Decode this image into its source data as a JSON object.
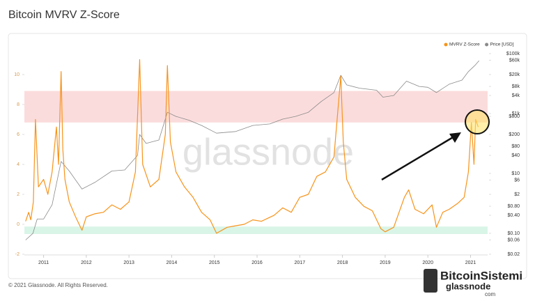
{
  "chart_data": {
    "type": "line",
    "title": "Bitcoin MVRV Z-Score",
    "watermark": "glassnode",
    "copyright": "© 2021 Glassnode. All Rights Reserved.",
    "logo": {
      "name": "BitcoinSistemi",
      "sub": "glassnode",
      "tag": "com"
    },
    "legend": "top-right",
    "xlim": [
      2010.55,
      2021.4
    ],
    "xticks": [
      2011,
      2012,
      2013,
      2014,
      2015,
      2016,
      2017,
      2018,
      2019,
      2020,
      2021
    ],
    "ylim": [
      -2,
      12
    ],
    "yticks": [
      -2,
      0,
      2,
      4,
      6,
      8,
      10
    ],
    "y2lim": [
      0.02,
      200000
    ],
    "y2log": true,
    "y2ticks": [
      {
        "value": 100000,
        "label": "$100k"
      },
      {
        "value": 60000,
        "label": "$60k"
      },
      {
        "value": 20000,
        "label": "$20k"
      },
      {
        "value": 8000,
        "label": "$8k"
      },
      {
        "value": 4000,
        "label": "$4k"
      },
      {
        "value": 1000,
        "label": "$1k"
      },
      {
        "value": 800,
        "label": "$800"
      },
      {
        "value": 200,
        "label": "$200"
      },
      {
        "value": 80,
        "label": "$80"
      },
      {
        "value": 40,
        "label": "$40"
      },
      {
        "value": 10,
        "label": "$10"
      },
      {
        "value": 6,
        "label": "$6"
      },
      {
        "value": 2,
        "label": "$2"
      },
      {
        "value": 0.8,
        "label": "$0.80"
      },
      {
        "value": 0.4,
        "label": "$0.40"
      },
      {
        "value": 0.1,
        "label": "$0.10"
      },
      {
        "value": 0.06,
        "label": "$0.06"
      },
      {
        "value": 0.02,
        "label": "$0.02"
      }
    ],
    "bands": [
      {
        "from": 6.8,
        "to": 8.9,
        "color": "#fbdcdc"
      },
      {
        "from": -0.65,
        "to": -0.15,
        "color": "#d9f5e8"
      }
    ],
    "series": [
      {
        "name": "MVRV Z-Score",
        "color": "#f7931a",
        "axis": "y",
        "x": [
          2010.58,
          2010.65,
          2010.7,
          2010.76,
          2010.81,
          2010.88,
          2011.0,
          2011.1,
          2011.2,
          2011.3,
          2011.35,
          2011.41,
          2011.45,
          2011.5,
          2011.6,
          2011.75,
          2011.9,
          2012.0,
          2012.2,
          2012.4,
          2012.6,
          2012.8,
          2013.0,
          2013.15,
          2013.25,
          2013.32,
          2013.5,
          2013.7,
          2013.85,
          2013.9,
          2013.97,
          2014.1,
          2014.3,
          2014.5,
          2014.7,
          2014.9,
          2015.05,
          2015.3,
          2015.5,
          2015.7,
          2015.9,
          2016.1,
          2016.4,
          2016.6,
          2016.8,
          2017.0,
          2017.2,
          2017.4,
          2017.6,
          2017.8,
          2017.96,
          2018.02,
          2018.1,
          2018.3,
          2018.5,
          2018.7,
          2018.9,
          2019.0,
          2019.2,
          2019.45,
          2019.55,
          2019.7,
          2019.9,
          2020.1,
          2020.2,
          2020.35,
          2020.5,
          2020.7,
          2020.85,
          2020.95,
          2021.02,
          2021.08,
          2021.12,
          2021.18
        ],
        "values": [
          0.2,
          0.8,
          0.3,
          1.5,
          7.0,
          2.5,
          3.0,
          2.0,
          3.5,
          6.5,
          4.0,
          10.2,
          5.0,
          3.0,
          1.5,
          0.5,
          -0.4,
          0.5,
          0.7,
          0.8,
          1.3,
          1.0,
          1.5,
          3.5,
          11.0,
          4.0,
          2.5,
          3.0,
          6.0,
          10.6,
          5.5,
          3.5,
          2.5,
          1.8,
          0.8,
          0.3,
          -0.6,
          -0.2,
          -0.1,
          0.0,
          0.3,
          0.2,
          0.6,
          1.1,
          0.8,
          1.8,
          2.0,
          3.2,
          3.5,
          4.5,
          9.9,
          5.5,
          3.0,
          1.8,
          1.2,
          0.9,
          -0.3,
          -0.5,
          -0.2,
          1.8,
          2.3,
          1.0,
          0.7,
          1.3,
          -0.2,
          0.8,
          1.0,
          1.4,
          1.8,
          3.5,
          6.8,
          4.0,
          7.0,
          6.5
        ]
      },
      {
        "name": "Price [USD]",
        "color": "#8a8a8a",
        "axis": "y2",
        "x": [
          2010.58,
          2010.75,
          2010.85,
          2011.0,
          2011.2,
          2011.41,
          2011.6,
          2011.9,
          2012.2,
          2012.6,
          2012.9,
          2013.2,
          2013.25,
          2013.4,
          2013.7,
          2013.9,
          2014.1,
          2014.4,
          2014.7,
          2015.05,
          2015.5,
          2015.9,
          2016.3,
          2016.6,
          2016.9,
          2017.2,
          2017.5,
          2017.8,
          2017.96,
          2018.1,
          2018.4,
          2018.8,
          2018.95,
          2019.2,
          2019.5,
          2019.8,
          2020.0,
          2020.2,
          2020.5,
          2020.8,
          2020.95,
          2021.1,
          2021.2
        ],
        "values": [
          0.06,
          0.1,
          0.3,
          0.3,
          0.9,
          25,
          12,
          3,
          5,
          12,
          13,
          40,
          200,
          100,
          130,
          1100,
          800,
          600,
          400,
          220,
          250,
          400,
          450,
          650,
          800,
          1100,
          2500,
          5000,
          19000,
          9000,
          7000,
          6000,
          3500,
          4000,
          12000,
          8000,
          7500,
          5000,
          9500,
          13000,
          25000,
          40000,
          58000
        ]
      }
    ]
  }
}
